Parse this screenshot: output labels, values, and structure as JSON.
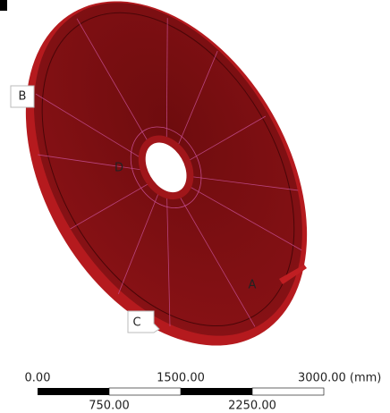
{
  "markers": [
    {
      "label": "A"
    },
    {
      "label": "B"
    },
    {
      "label": "C"
    },
    {
      "label": "D"
    }
  ],
  "scale_bar": {
    "top_labels": [
      "0.00",
      "1500.00",
      "3000.00 (mm)"
    ],
    "bottom_labels": [
      "750.00",
      "2250.00"
    ]
  }
}
